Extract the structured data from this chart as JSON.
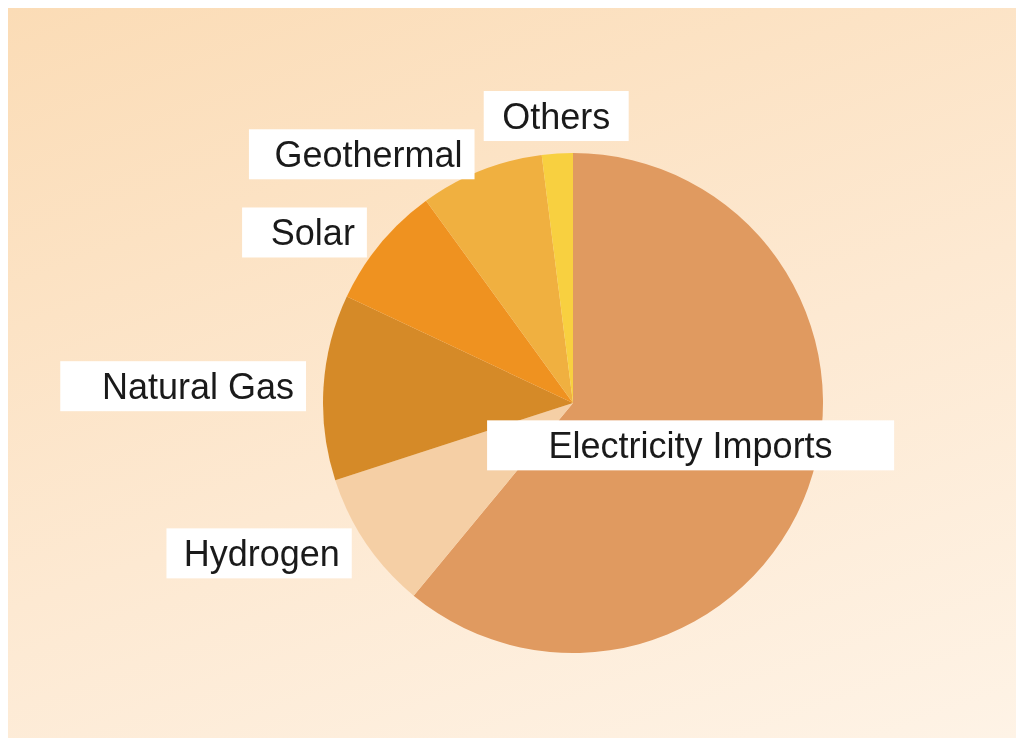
{
  "chart_data": {
    "type": "pie",
    "categories": [
      "Electricity Imports",
      "Hydrogen",
      "Natural Gas",
      "Solar",
      "Geothermal",
      "Others"
    ],
    "values": [
      61,
      9,
      12,
      8,
      8,
      2
    ],
    "colors": [
      "#e09a60",
      "#f5cfa5",
      "#d58a28",
      "#ef9220",
      "#f0b040",
      "#f8d040"
    ]
  }
}
